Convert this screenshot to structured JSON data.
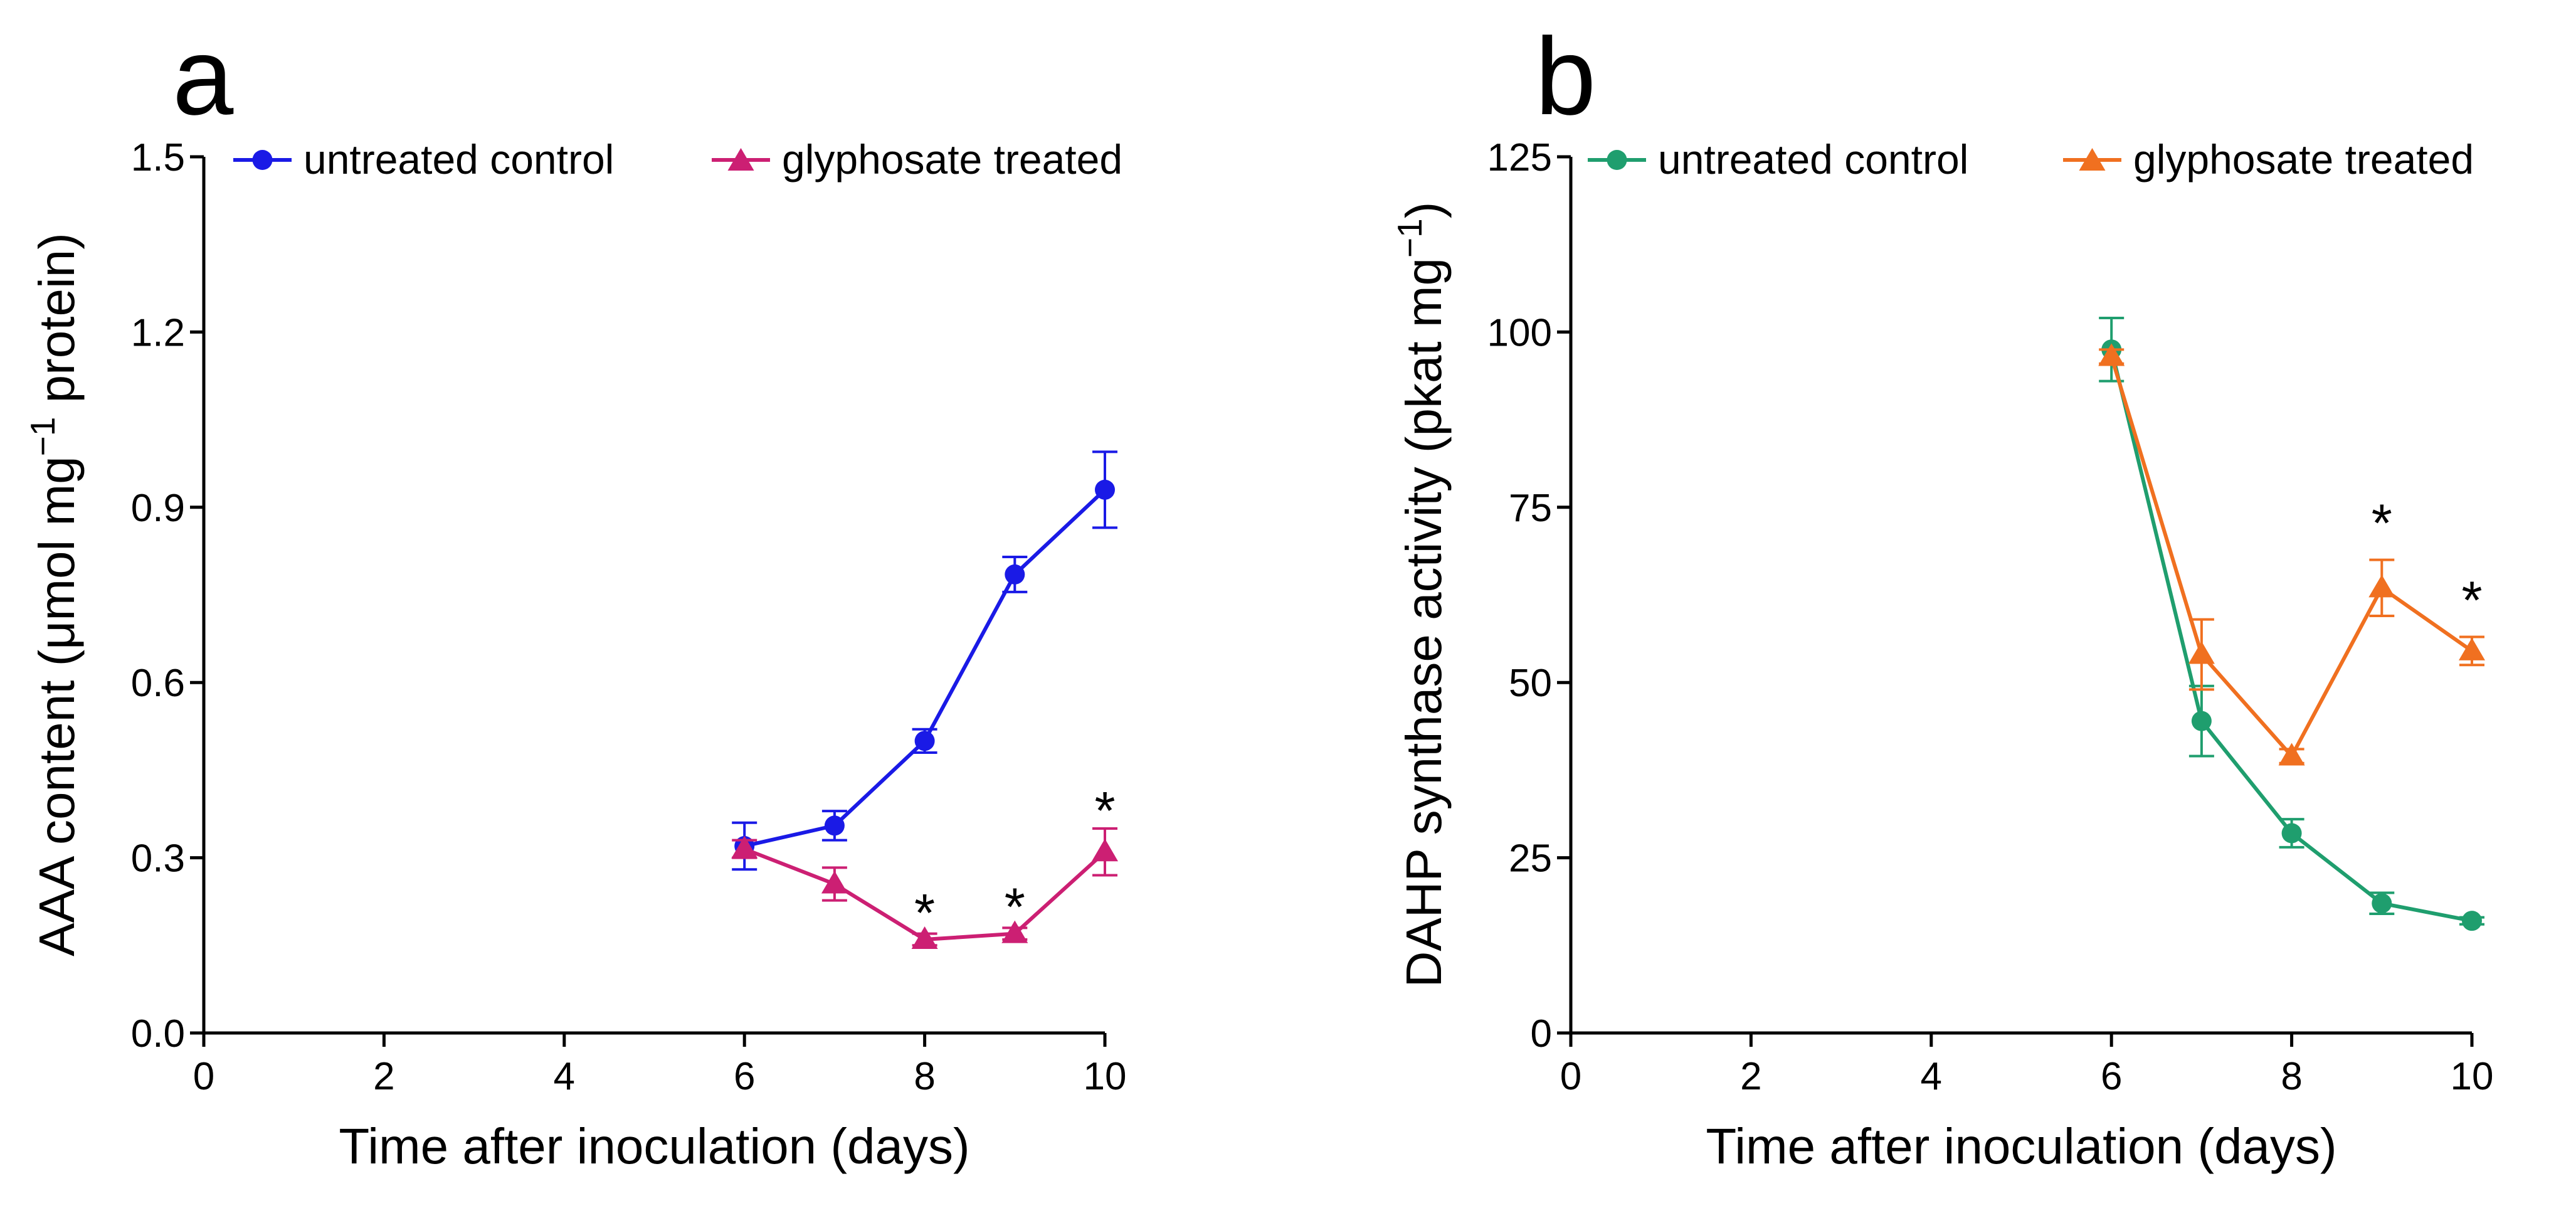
{
  "figure": {
    "panels": [
      "a",
      "b"
    ]
  },
  "chart_data": [
    {
      "panel": "a",
      "type": "line",
      "xlabel": "Time after inoculation (days)",
      "ylabel_parts": [
        "AAA content (",
        "μ",
        "mol mg",
        "−1",
        " protein)"
      ],
      "xlim": [
        0,
        10
      ],
      "ylim": [
        0,
        1.5
      ],
      "xticks": [
        0,
        2,
        4,
        6,
        8,
        10
      ],
      "xtick_labels": [
        "0",
        "2",
        "4",
        "6",
        "8",
        "10"
      ],
      "yticks": [
        0,
        0.3,
        0.6,
        0.9,
        1.2,
        1.5
      ],
      "ytick_labels": [
        "0.0",
        "0.3",
        "0.6",
        "0.9",
        "1.2",
        "1.5"
      ],
      "legend_position": "top",
      "series": [
        {
          "name": "untreated control",
          "marker": "circle",
          "color": "#1a1ae6",
          "x": [
            6,
            7,
            8,
            9,
            10
          ],
          "values": [
            0.32,
            0.355,
            0.5,
            0.785,
            0.93
          ],
          "errors": [
            0.04,
            0.025,
            0.02,
            0.03,
            0.065
          ]
        },
        {
          "name": "glyphosate treated",
          "marker": "triangle",
          "color": "#cc1f73",
          "x": [
            6,
            7,
            8,
            9,
            10
          ],
          "values": [
            0.315,
            0.255,
            0.16,
            0.17,
            0.31
          ],
          "errors": [
            0.015,
            0.028,
            0.01,
            0.01,
            0.04
          ]
        }
      ],
      "annotations": [
        {
          "text": "*",
          "x": 8,
          "y": 0.215
        },
        {
          "text": "*",
          "x": 9,
          "y": 0.225
        },
        {
          "text": "*",
          "x": 10,
          "y": 0.39
        }
      ]
    },
    {
      "panel": "b",
      "type": "line",
      "xlabel": "Time after inoculation (days)",
      "ylabel_parts": [
        "DAHP synthase activity (pkat mg",
        "−1",
        ")"
      ],
      "xlim": [
        0,
        10
      ],
      "ylim": [
        0,
        125
      ],
      "xticks": [
        0,
        2,
        4,
        6,
        8,
        10
      ],
      "xtick_labels": [
        "0",
        "2",
        "4",
        "6",
        "8",
        "10"
      ],
      "yticks": [
        0,
        25,
        50,
        75,
        100,
        125
      ],
      "ytick_labels": [
        "0",
        "25",
        "50",
        "75",
        "100",
        "125"
      ],
      "legend_position": "top",
      "series": [
        {
          "name": "untreated control",
          "marker": "circle",
          "color": "#1f9e6e",
          "x": [
            6,
            7,
            8,
            9,
            10
          ],
          "values": [
            97.5,
            44.5,
            28.5,
            18.5,
            16
          ],
          "errors": [
            4.5,
            5,
            2,
            1.5,
            0.5
          ]
        },
        {
          "name": "glyphosate treated",
          "marker": "triangle",
          "color": "#f07020",
          "x": [
            6,
            7,
            8,
            9,
            10
          ],
          "values": [
            96.5,
            54,
            39.5,
            63.5,
            54.5
          ],
          "errors": [
            1,
            5,
            1,
            4,
            2
          ]
        }
      ],
      "annotations": [
        {
          "text": "*",
          "x": 9,
          "y": 73.5
        },
        {
          "text": "*",
          "x": 10,
          "y": 62.5
        }
      ]
    }
  ]
}
